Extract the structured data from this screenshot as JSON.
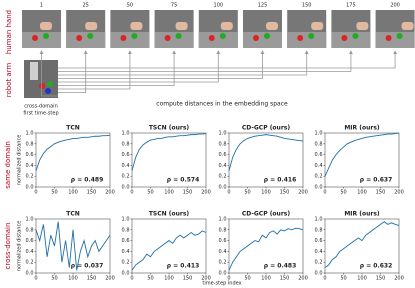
{
  "side_labels": [
    "human hand",
    "robot arm"
  ],
  "frame_numbers": [
    1,
    25,
    50,
    75,
    100,
    125,
    150,
    175,
    200
  ],
  "first_frame_caption": [
    "cross-domain",
    "first time-step"
  ],
  "embedding_caption": "compute distances in the embedding space",
  "domain_labels": [
    "same domain",
    "cross-domain"
  ],
  "x_label": "time-step index",
  "chart_data": [
    {
      "type": "line",
      "title": "TCN",
      "annotation": "ρ = 0.489",
      "ylabel": "normalized distance",
      "color": "#1f6fa8",
      "x": [
        0,
        10,
        20,
        30,
        40,
        50,
        60,
        70,
        80,
        90,
        100,
        110,
        120,
        130,
        140,
        150,
        160,
        170,
        180,
        190,
        200
      ],
      "values": [
        0.3,
        0.5,
        0.62,
        0.7,
        0.75,
        0.8,
        0.83,
        0.85,
        0.87,
        0.88,
        0.9,
        0.9,
        0.91,
        0.92,
        0.92,
        0.93,
        0.94,
        0.94,
        0.95,
        0.95,
        0.96
      ],
      "xlim": [
        0,
        200
      ],
      "ylim": [
        0,
        1
      ],
      "xticks": [
        0,
        50,
        100,
        150,
        200
      ],
      "yticks": [
        {
          "value": 0,
          "label": "0.0"
        },
        {
          "value": 0.2,
          "label": "0.2"
        },
        {
          "value": 0.4,
          "label": "0.4"
        },
        {
          "value": 0.6,
          "label": "0.6"
        },
        {
          "value": 0.8,
          "label": "0.8"
        },
        {
          "value": 1,
          "label": "1.0"
        }
      ]
    },
    {
      "type": "line",
      "title": "TSCN (ours)",
      "annotation": "ρ = 0.574",
      "color": "#1f6fa8",
      "x": [
        0,
        10,
        20,
        30,
        40,
        50,
        60,
        70,
        80,
        90,
        100,
        110,
        120,
        130,
        140,
        150,
        160,
        170,
        180,
        190,
        200
      ],
      "values": [
        0.3,
        0.55,
        0.7,
        0.78,
        0.83,
        0.87,
        0.88,
        0.9,
        0.9,
        0.92,
        0.93,
        0.93,
        0.94,
        0.95,
        0.95,
        0.96,
        0.97,
        0.97,
        0.98,
        0.98,
        0.99
      ],
      "xlim": [
        0,
        200
      ],
      "ylim": [
        0,
        1
      ],
      "xticks": [
        0,
        50,
        100,
        150,
        200
      ],
      "yticks": [
        {
          "value": 0,
          "label": "0.0"
        },
        {
          "value": 0.2,
          "label": "0.2"
        },
        {
          "value": 0.4,
          "label": "0.4"
        },
        {
          "value": 0.6,
          "label": "0.6"
        },
        {
          "value": 0.8,
          "label": "0.8"
        },
        {
          "value": 1,
          "label": "1.0"
        }
      ]
    },
    {
      "type": "line",
      "title": "CD-GCP (ours)",
      "annotation": "ρ = 0.416",
      "color": "#1f6fa8",
      "x": [
        0,
        10,
        20,
        30,
        40,
        50,
        60,
        70,
        80,
        90,
        100,
        110,
        120,
        130,
        140,
        150,
        160,
        170,
        180,
        190,
        200
      ],
      "values": [
        0.3,
        0.55,
        0.7,
        0.8,
        0.86,
        0.9,
        0.92,
        0.94,
        0.95,
        0.96,
        0.97,
        0.96,
        0.95,
        0.94,
        0.92,
        0.9,
        0.89,
        0.88,
        0.87,
        0.86,
        0.85
      ],
      "xlim": [
        0,
        200
      ],
      "ylim": [
        0,
        1
      ],
      "xticks": [
        0,
        50,
        100,
        150,
        200
      ],
      "yticks": [
        {
          "value": 0,
          "label": "0.0"
        },
        {
          "value": 0.2,
          "label": "0.2"
        },
        {
          "value": 0.4,
          "label": "0.4"
        },
        {
          "value": 0.6,
          "label": "0.6"
        },
        {
          "value": 0.8,
          "label": "0.8"
        },
        {
          "value": 1,
          "label": "1.0"
        }
      ]
    },
    {
      "type": "line",
      "title": "MIR (ours)",
      "annotation": "ρ = 0.637",
      "color": "#1f6fa8",
      "x": [
        0,
        10,
        20,
        30,
        40,
        50,
        60,
        70,
        80,
        90,
        100,
        110,
        120,
        130,
        140,
        150,
        160,
        170,
        180,
        190,
        200
      ],
      "values": [
        0.2,
        0.35,
        0.5,
        0.6,
        0.68,
        0.74,
        0.8,
        0.83,
        0.86,
        0.88,
        0.9,
        0.92,
        0.93,
        0.94,
        0.95,
        0.96,
        0.97,
        0.98,
        0.98,
        0.99,
        1.0
      ],
      "xlim": [
        0,
        200
      ],
      "ylim": [
        0,
        1
      ],
      "xticks": [
        0,
        50,
        100,
        150,
        200
      ],
      "yticks": [
        {
          "value": 0,
          "label": "0.0"
        },
        {
          "value": 0.2,
          "label": "0.2"
        },
        {
          "value": 0.4,
          "label": "0.4"
        },
        {
          "value": 0.6,
          "label": "0.6"
        },
        {
          "value": 0.8,
          "label": "0.8"
        },
        {
          "value": 1,
          "label": "1.0"
        }
      ]
    },
    {
      "type": "line",
      "title": "TCN",
      "annotation": "ρ = 0.037",
      "ylabel": "normalized distance",
      "color": "#1f6fa8",
      "x": [
        0,
        10,
        20,
        30,
        40,
        50,
        60,
        70,
        80,
        90,
        100,
        110,
        120,
        130,
        140,
        150,
        160,
        170,
        180,
        190,
        200
      ],
      "values": [
        0.8,
        0.6,
        0.9,
        0.3,
        0.7,
        0.5,
        0.95,
        0.2,
        0.6,
        0.1,
        0.8,
        0.05,
        0.4,
        0.6,
        0.3,
        0.5,
        0.6,
        0.4,
        0.5,
        0.6,
        0.7
      ],
      "xlim": [
        0,
        200
      ],
      "ylim": [
        0,
        1
      ],
      "xticks": [
        0,
        50,
        100,
        150,
        200
      ],
      "yticks": [
        {
          "value": 0,
          "label": "0.0"
        },
        {
          "value": 0.2,
          "label": "0.2"
        },
        {
          "value": 0.4,
          "label": "0.4"
        },
        {
          "value": 0.6,
          "label": "0.6"
        },
        {
          "value": 0.8,
          "label": "0.8"
        },
        {
          "value": 1,
          "label": "1.0"
        }
      ]
    },
    {
      "type": "line",
      "title": "TSCN (ours)",
      "annotation": "ρ = 0.413",
      "color": "#1f6fa8",
      "x": [
        0,
        10,
        20,
        30,
        40,
        50,
        60,
        70,
        80,
        90,
        100,
        110,
        120,
        130,
        140,
        150,
        160,
        170,
        180,
        190,
        200
      ],
      "values": [
        0.05,
        0.15,
        0.2,
        0.25,
        0.35,
        0.3,
        0.4,
        0.45,
        0.5,
        0.55,
        0.6,
        0.55,
        0.65,
        0.7,
        0.65,
        0.7,
        0.75,
        0.7,
        0.72,
        0.78,
        0.75
      ],
      "xlim": [
        0,
        200
      ],
      "ylim": [
        0,
        1
      ],
      "xticks": [
        0,
        50,
        100,
        150,
        200
      ],
      "yticks": [
        {
          "value": 0,
          "label": "0.0"
        },
        {
          "value": 0.2,
          "label": "0.2"
        },
        {
          "value": 0.4,
          "label": "0.4"
        },
        {
          "value": 0.6,
          "label": "0.6"
        },
        {
          "value": 0.8,
          "label": "0.8"
        },
        {
          "value": 1,
          "label": "1.0"
        }
      ]
    },
    {
      "type": "line",
      "title": "CD-GCP (ours)",
      "annotation": "ρ = 0.483",
      "color": "#1f6fa8",
      "x": [
        0,
        10,
        20,
        30,
        40,
        50,
        60,
        70,
        80,
        90,
        100,
        110,
        120,
        130,
        140,
        150,
        160,
        170,
        180,
        190,
        200
      ],
      "values": [
        0.05,
        0.2,
        0.3,
        0.4,
        0.45,
        0.5,
        0.55,
        0.6,
        0.58,
        0.7,
        0.65,
        0.75,
        0.78,
        0.72,
        0.8,
        0.78,
        0.82,
        0.8,
        0.83,
        0.82,
        0.8
      ],
      "xlim": [
        0,
        200
      ],
      "ylim": [
        0,
        1
      ],
      "xticks": [
        0,
        50,
        100,
        150,
        200
      ],
      "yticks": [
        {
          "value": 0,
          "label": "0.0"
        },
        {
          "value": 0.2,
          "label": "0.2"
        },
        {
          "value": 0.4,
          "label": "0.4"
        },
        {
          "value": 0.6,
          "label": "0.6"
        },
        {
          "value": 0.8,
          "label": "0.8"
        },
        {
          "value": 1,
          "label": "1.0"
        }
      ]
    },
    {
      "type": "line",
      "title": "MIR (ours)",
      "annotation": "ρ = 0.632",
      "color": "#1f6fa8",
      "x": [
        0,
        10,
        20,
        30,
        40,
        50,
        60,
        70,
        80,
        90,
        100,
        110,
        120,
        130,
        140,
        150,
        160,
        170,
        180,
        190,
        200
      ],
      "values": [
        0.1,
        0.15,
        0.25,
        0.3,
        0.4,
        0.45,
        0.5,
        0.55,
        0.6,
        0.65,
        0.6,
        0.7,
        0.75,
        0.8,
        0.85,
        0.9,
        0.95,
        0.9,
        0.93,
        0.9,
        0.88
      ],
      "xlim": [
        0,
        200
      ],
      "ylim": [
        0,
        1
      ],
      "xticks": [
        0,
        50,
        100,
        150,
        200
      ],
      "yticks": [
        {
          "value": 0,
          "label": "0.0"
        },
        {
          "value": 0.2,
          "label": "0.2"
        },
        {
          "value": 0.4,
          "label": "0.4"
        },
        {
          "value": 0.6,
          "label": "0.6"
        },
        {
          "value": 0.8,
          "label": "0.8"
        },
        {
          "value": 1,
          "label": "1.0"
        }
      ]
    }
  ]
}
